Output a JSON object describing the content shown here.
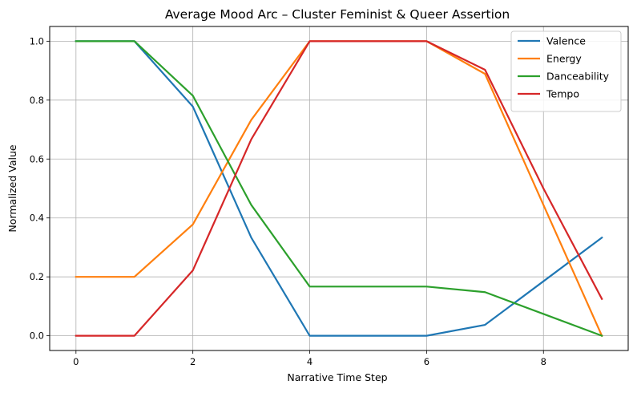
{
  "chart_data": {
    "type": "line",
    "title": "Average Mood Arc – Cluster Feminist & Queer Assertion",
    "xlabel": "Narrative Time Step",
    "ylabel": "Normalized Value",
    "x": [
      0,
      1,
      2,
      3,
      4,
      5,
      6,
      7,
      8,
      9
    ],
    "xlim": [
      -0.45,
      9.45
    ],
    "ylim": [
      -0.05,
      1.05
    ],
    "xticks": [
      0,
      2,
      4,
      6,
      8
    ],
    "xtick_labels": [
      "0",
      "2",
      "4",
      "6",
      "8"
    ],
    "yticks": [
      0.0,
      0.2,
      0.4,
      0.6,
      0.8,
      1.0
    ],
    "ytick_labels": [
      "0.0",
      "0.2",
      "0.4",
      "0.6",
      "0.8",
      "1.0"
    ],
    "grid": true,
    "legend_position": "top-right",
    "series": [
      {
        "name": "Valence",
        "color": "#1f77b4",
        "values": [
          1.0,
          1.0,
          0.778,
          0.333,
          0.0,
          0.0,
          0.0,
          0.037,
          0.185,
          0.333
        ]
      },
      {
        "name": "Energy",
        "color": "#ff7f0e",
        "values": [
          0.2,
          0.2,
          0.378,
          0.733,
          1.0,
          1.0,
          1.0,
          0.889,
          0.444,
          0.0
        ]
      },
      {
        "name": "Danceability",
        "color": "#2ca02c",
        "values": [
          1.0,
          1.0,
          0.815,
          0.444,
          0.167,
          0.167,
          0.167,
          0.148,
          0.074,
          0.0
        ]
      },
      {
        "name": "Tempo",
        "color": "#d62728",
        "values": [
          0.0,
          0.0,
          0.222,
          0.667,
          1.0,
          1.0,
          1.0,
          0.903,
          0.5,
          0.125
        ]
      }
    ]
  }
}
